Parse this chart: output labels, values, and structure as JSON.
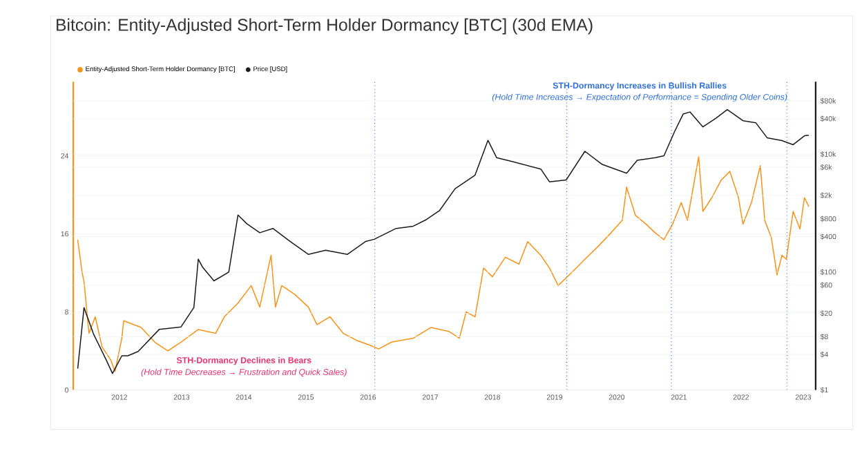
{
  "chart_data": {
    "type": "line",
    "title": "Bitcoin: Entity-Adjusted Short-Term Holder Dormancy [BTC] (30d EMA)",
    "legend": "top left",
    "grid": "y",
    "xlim": [
      "2011-04-05",
      "2023-03-15"
    ],
    "xticks": [
      "2012",
      "2013",
      "2014",
      "2015",
      "2016",
      "2017",
      "2018",
      "2019",
      "2020",
      "2021",
      "2022",
      "2023"
    ],
    "ylim": [
      0,
      31.6
    ],
    "yticks": [
      0,
      8,
      16,
      24
    ],
    "y2lim": [
      1,
      170000
    ],
    "log": "y2",
    "y2ticks": [
      {
        "value": 1,
        "label": "$1"
      },
      {
        "value": 4,
        "label": "$4"
      },
      {
        "value": 8,
        "label": "$8"
      },
      {
        "value": 20,
        "label": "$20"
      },
      {
        "value": 60,
        "label": "$60"
      },
      {
        "value": 100,
        "label": "$100"
      },
      {
        "value": 400,
        "label": "$400"
      },
      {
        "value": 800,
        "label": "$800"
      },
      {
        "value": 2000,
        "label": "$2k"
      },
      {
        "value": 6000,
        "label": "$6k"
      },
      {
        "value": 10000,
        "label": "$10k"
      },
      {
        "value": 40000,
        "label": "$40k"
      },
      {
        "value": 80000,
        "label": "$80k"
      }
    ],
    "series": [
      {
        "name": "Entity-Adjusted Short-Term Holder Dormancy [BTC]",
        "color": "#f7931a",
        "x": [
          "2011-05-01",
          "2011-05-27",
          "2011-06-07",
          "2011-07-06",
          "2011-08-12",
          "2011-09-21",
          "2011-11-10",
          "2011-12-06",
          "2012-01-15",
          "2012-01-26",
          "2012-05-08",
          "2012-07-27",
          "2012-10-12",
          "2012-12-28",
          "2013-04-09",
          "2013-07-20",
          "2013-09-09",
          "2013-11-28",
          "2014-02-14",
          "2014-04-05",
          "2014-06-10",
          "2014-07-06",
          "2014-08-12",
          "2014-10-27",
          "2015-01-15",
          "2015-03-07",
          "2015-05-22",
          "2015-08-08",
          "2015-10-23",
          "2016-01-10",
          "2016-03-03",
          "2016-05-18",
          "2016-09-23",
          "2017-01-04",
          "2017-04-20",
          "2017-06-21",
          "2017-07-31",
          "2017-09-21",
          "2017-11-10",
          "2018-01-01",
          "2018-03-18",
          "2018-06-06",
          "2018-07-27",
          "2018-10-12",
          "2018-12-02",
          "2019-01-22",
          "2019-04-09",
          "2019-06-28",
          "2019-09-13",
          "2019-11-28",
          "2020-02-03",
          "2020-02-28",
          "2020-04-20",
          "2020-06-21",
          "2020-08-15",
          "2020-10-05",
          "2020-11-25",
          "2021-01-15",
          "2021-02-20",
          "2021-04-27",
          "2021-05-22",
          "2021-07-13",
          "2021-09-06",
          "2021-10-27",
          "2021-12-17",
          "2022-01-12",
          "2022-03-03",
          "2022-04-24",
          "2022-05-20",
          "2022-06-28",
          "2022-07-31",
          "2022-08-29",
          "2022-09-24",
          "2022-11-03",
          "2022-12-13",
          "2023-01-08",
          "2023-02-03"
        ],
        "values": [
          15.4,
          12.0,
          11.1,
          5.8,
          7.5,
          4.4,
          3.1,
          1.9,
          5.3,
          7.1,
          6.4,
          4.9,
          4.0,
          4.9,
          6.2,
          5.8,
          7.5,
          8.9,
          10.7,
          8.5,
          13.8,
          8.5,
          10.7,
          9.8,
          8.5,
          6.7,
          7.5,
          5.8,
          5.1,
          4.6,
          4.2,
          4.9,
          5.3,
          6.4,
          6.0,
          5.3,
          8.0,
          7.5,
          12.5,
          11.6,
          13.6,
          12.9,
          15.2,
          13.8,
          12.5,
          10.7,
          12.0,
          13.4,
          14.7,
          16.1,
          17.4,
          20.8,
          17.9,
          17.0,
          16.1,
          15.4,
          17.0,
          19.2,
          17.4,
          23.9,
          18.3,
          19.7,
          21.5,
          22.4,
          19.7,
          17.0,
          19.2,
          23.0,
          17.4,
          15.6,
          11.8,
          13.8,
          13.4,
          18.3,
          16.5,
          19.7,
          18.8
        ]
      },
      {
        "name": "Price [USD]",
        "color": "#1a1a1a",
        "axis": "y2",
        "x": [
          "2011-05-01",
          "2011-06-07",
          "2011-08-01",
          "2011-10-16",
          "2011-11-21",
          "2012-01-15",
          "2012-02-20",
          "2012-04-20",
          "2012-08-23",
          "2012-12-28",
          "2013-03-14",
          "2013-04-09",
          "2013-05-05",
          "2013-07-10",
          "2013-10-05",
          "2013-11-28",
          "2014-01-19",
          "2014-04-05",
          "2014-06-21",
          "2014-10-01",
          "2015-01-15",
          "2015-04-27",
          "2015-09-02",
          "2015-12-17",
          "2016-02-06",
          "2016-06-14",
          "2016-09-23",
          "2016-12-10",
          "2017-02-24",
          "2017-05-27",
          "2017-09-21",
          "2017-12-06",
          "2018-01-26",
          "2018-05-12",
          "2018-10-12",
          "2018-12-02",
          "2019-03-10",
          "2019-06-28",
          "2019-10-08",
          "2020-02-28",
          "2020-05-01",
          "2020-08-15",
          "2020-10-05",
          "2020-12-06",
          "2021-01-26",
          "2021-03-07",
          "2021-05-22",
          "2021-08-08",
          "2021-10-12",
          "2022-01-12",
          "2022-03-29",
          "2022-06-03",
          "2022-08-29",
          "2022-11-03",
          "2023-01-08",
          "2023-02-03"
        ],
        "values": [
          2.3,
          25,
          9,
          3.2,
          1.9,
          3.8,
          3.8,
          4.5,
          10.7,
          11.7,
          25,
          166,
          120,
          71,
          100,
          930,
          660,
          465,
          550,
          330,
          200,
          235,
          200,
          330,
          360,
          550,
          600,
          780,
          1100,
          2600,
          4400,
          17200,
          8700,
          7300,
          5600,
          3400,
          3650,
          11200,
          6700,
          4750,
          7900,
          8700,
          9400,
          24000,
          48000,
          52000,
          29000,
          41000,
          57000,
          37000,
          34000,
          19000,
          17000,
          14500,
          20500,
          21000
        ]
      }
    ],
    "ref_lines": [
      {
        "axis": "x",
        "value": "2016-02-10",
        "color": "#2f6fdc",
        "line_style": "dotted"
      },
      {
        "axis": "x",
        "value": "2019-03-14",
        "color": "#2f6fdc",
        "line_style": "dotted"
      },
      {
        "axis": "x",
        "value": "2020-11-18",
        "color": "#2f6fdc",
        "line_style": "dotted"
      },
      {
        "axis": "x",
        "value": "2022-09-27",
        "color": "#2f6fdc",
        "line_style": "dotted"
      }
    ],
    "annotations": [
      "STH-Dormancy Increases in Bullish Rallies",
      "(Hold Time Increases → Expectation of Performance = Spending Older Coins)",
      "STH-Dormancy Declines in Bears",
      "(Hold Time Decreases → Frustration and Quick Sales)"
    ]
  }
}
